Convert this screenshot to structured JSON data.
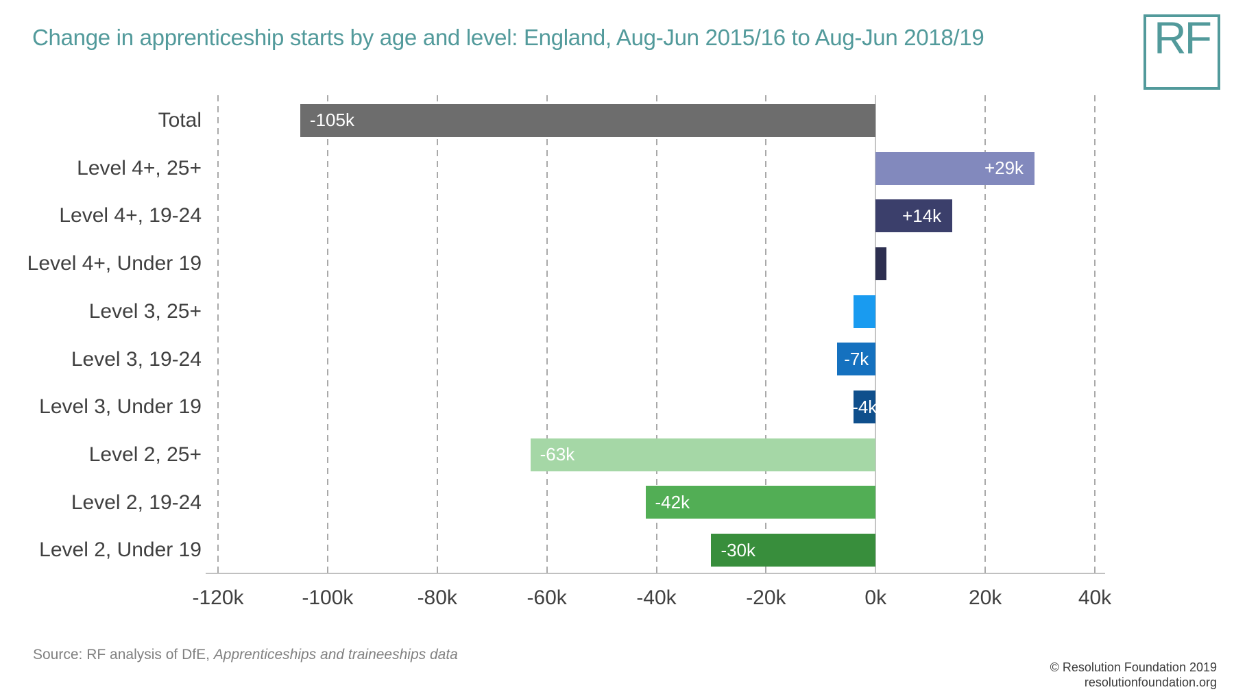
{
  "header": {
    "title": "Change in apprenticeship starts by age and level: England, Aug-Jun 2015/16 to Aug-Jun 2018/19",
    "logo_text": "RF",
    "accent_color": "#529a9b"
  },
  "chart_data": {
    "type": "bar",
    "orientation": "horizontal",
    "title": "Change in apprenticeship starts by age and level: England, Aug-Jun 2015/16 to Aug-Jun 2018/19",
    "categories": [
      "Total",
      "Level 4+, 25+",
      "Level 4+, 19-24",
      "Level 4+, Under 19",
      "Level 3, 25+",
      "Level 3, 19-24",
      "Level 3, Under 19",
      "Level 2, 25+",
      "Level 2, 19-24",
      "Level 2, Under 19"
    ],
    "values_thousands": [
      -105,
      29,
      14,
      2,
      -4,
      -7,
      -4,
      -63,
      -42,
      -30
    ],
    "bar_labels": [
      "-105k",
      "+29k",
      "+14k",
      "",
      "",
      "-7k",
      "-4k",
      "-63k",
      "-42k",
      "-30k"
    ],
    "bar_colors": [
      "#6d6d6d",
      "#8289bd",
      "#3b3f6b",
      "#2d2f50",
      "#199bf0",
      "#1571bf",
      "#0f4f8c",
      "#a5d7a6",
      "#52ae55",
      "#388e3c"
    ],
    "xlim_thousands": [
      -120,
      40
    ],
    "x_tick_step_thousands": 20,
    "x_tick_labels": [
      "-120k",
      "-100k",
      "-80k",
      "-60k",
      "-40k",
      "-20k",
      "0k",
      "20k",
      "40k"
    ],
    "grid": "vertical dashed gridlines, solid zero line",
    "legend": "none",
    "bar_label_color": "#ffffff"
  },
  "footer": {
    "source_prefix": "Source: RF analysis of DfE, ",
    "source_italic": "Apprenticeships and traineeships data",
    "copyright": "© Resolution Foundation 2019",
    "website": "resolutionfoundation.org"
  }
}
